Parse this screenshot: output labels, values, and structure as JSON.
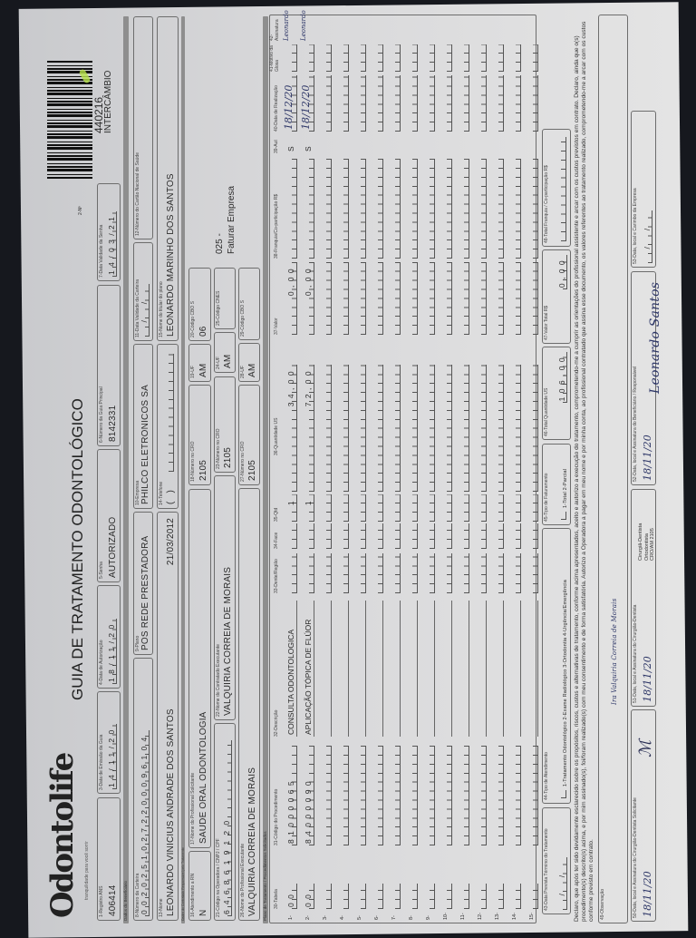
{
  "header": {
    "logo": "Odontolife",
    "tagline": "tranquilidade para você sorrir",
    "title": "GUIA DE TRATAMENTO ODONTOLÓGICO",
    "guide_no_label": "2-Nº",
    "barcode_number": "440216",
    "barcode_label": "INTERCÂMBIO"
  },
  "sections": {
    "beneficiary": "Dados do Beneficiário",
    "contractor": "Dados do Contratado Responsável pelo Tratamento",
    "plan": "Plano de Tratamento / Procedimentos Solicitados"
  },
  "fields": {
    "f1": {
      "label": "1-Registro ANS",
      "value": "406414"
    },
    "f3": {
      "label": "3-Data de Emissão da Guia",
      "value": "14/11/20"
    },
    "f4": {
      "label": "4-Data de Autorização",
      "value": "18/11/20"
    },
    "f5": {
      "label": "5-Senha",
      "value": "AUTORIZADO"
    },
    "f6": {
      "label": "6-Número da Guia Principal",
      "value": "8142331"
    },
    "f7": {
      "label": "7-Data Validade da Senha",
      "value": "14/03/21"
    },
    "f8": {
      "label": "8-Número da Carteira",
      "value": "00202510272200096104"
    },
    "f9": {
      "label": "9-Plano",
      "value": "POS REDE PRESTADORA"
    },
    "f10": {
      "label": "10-Empresa",
      "value": "PHILCO ELETRONICOS SA"
    },
    "f11": {
      "label": "11-Data Validade da Carteira",
      "value": "  /  /  "
    },
    "f12": {
      "label": "12-Número do Cartão Nacional de Saúde",
      "value": ""
    },
    "f13": {
      "label": "13-Nome",
      "value": "LEONARDO VINICIUS ANDRADE DOS SANTOS",
      "date": "21/03/2012"
    },
    "f14": {
      "label": "14-Telefone",
      "value": "(   )"
    },
    "f15": {
      "label": "15-Nome do titular do plano",
      "value": "LEONARDO MARINHO DOS SANTOS"
    },
    "f16": {
      "label": "16-Atendimento a RN",
      "value": "N"
    },
    "f17": {
      "label": "17-Nome do Profissional Solicitante",
      "value": "SAUDE ORAL ODONTOLOGIA"
    },
    "f18": {
      "label": "18-Número no CRO",
      "value": "2105"
    },
    "f19": {
      "label": "19-UF",
      "value": "AM"
    },
    "f20": {
      "label": "20-Código CBO S",
      "value": "06"
    },
    "f21": {
      "label": "21-Código na Operadora / CNPJ / CPF",
      "value": "6468619120"
    },
    "f22": {
      "label": "22-Nome do Contratado Executante",
      "value": "VALQUIRIA CORREIA DE MORAIS"
    },
    "f23": {
      "label": "23-Número no CRO",
      "value": "2105"
    },
    "f24": {
      "label": "24-UF",
      "value": "AM"
    },
    "f25": {
      "label": "25-Código CNES",
      "value": ""
    },
    "f26": {
      "label": "26-Nome do Profissional Executante",
      "value": "VALQUIRIA CORREIA DE MORAIS"
    },
    "f27": {
      "label": "27-Número no CRO",
      "value": "2105"
    },
    "f28": {
      "label": "28-UF",
      "value": "AM"
    },
    "f29": {
      "label": "29-Código CBO S",
      "value": ""
    },
    "billing_note_1": "025 -",
    "billing_note_2": "Faturar Empresa"
  },
  "table": {
    "headers": [
      "30-Tabela",
      "31-Código do Procedimento",
      "32-Descrição",
      "33-Dente/Região",
      "34-Face",
      "35-Qtd",
      "36-Quantidade US",
      "37-Valor",
      "38-Franquia/Co-participação R$",
      "39-Aut",
      "40-Data de Realização",
      "41-Motivo da Glosa",
      "42-Assinatura"
    ],
    "rows": [
      {
        "num": "1-",
        "tabela": "00",
        "codigo": "81000065",
        "descricao": "CONSULTA ODONTOLOGICA",
        "qtd": "1",
        "quant_us": "34,00",
        "valor": "0,00",
        "aut": "S",
        "data": "18/12/20",
        "assinatura": "Leonardo"
      },
      {
        "num": "2-",
        "tabela": "00",
        "codigo": "84000090",
        "descricao": "APLICAÇÃO TÓPICA DE FLÚOR",
        "qtd": "1",
        "quant_us": "72,00",
        "valor": "0,00",
        "aut": "S",
        "data": "18/12/20",
        "assinatura": "Leonardo"
      },
      {
        "num": "3-"
      },
      {
        "num": "4-"
      },
      {
        "num": "5-"
      },
      {
        "num": "6-"
      },
      {
        "num": "7-"
      },
      {
        "num": "8-"
      },
      {
        "num": "9-"
      },
      {
        "num": "10-"
      },
      {
        "num": "11-"
      },
      {
        "num": "12-"
      },
      {
        "num": "13-"
      },
      {
        "num": "14-"
      },
      {
        "num": "15-"
      }
    ]
  },
  "footer": {
    "f43": {
      "label": "43-Data Prevista Término do Tratamento",
      "value": "  /  /  "
    },
    "f44": {
      "label": "44-Tipo de Atendimento",
      "options": "1-Tratamento Odontológico  2-Exame Radiológico  3-Ortodontia  4-Urgência/Emergência"
    },
    "f45": {
      "label": "45-Tipo de Faturamento",
      "options": "1-Total  2-Parcial"
    },
    "f46": {
      "label": "46-Total Quantidade US",
      "value": "106,00"
    },
    "f47": {
      "label": "47-Valor Total R$",
      "value": "0,00"
    },
    "f48": {
      "label": "48-Total Franquia / Co-participação R$",
      "value": ""
    },
    "declaration": "Declaro, que após ter sido devidamente esclarecido sobre os propósitos, riscos, custos e alternativas de tratamento, conforme acima apresentados, aceito e autorizo a execução do tratamento, comprometendo-me a cumprir as orientações do profissional assistente e arcar com os custos previstos em contrato. Declaro, ainda que o(s) procedimento(s) descrito(s) acima, e por mim assinado(s), foi/foram realizado(s) com meu consentimento e de forma satisfatória. Autorizo a Operadora a pagar em meu nome e por minha conta, ao profissional contratado que assina esse documento, os valores referentes ao tratamento realizado, comprometendo-me a arcar com os custos conforme previsto em contrato.",
    "f49": {
      "label": "49-Observação",
      "handwritten": "Ira Valquiria Correia de Morais"
    },
    "f50": {
      "label": "50-Data, local e Assinatura do Cirurgião-Dentista Solicitante",
      "value": "18/11/20"
    },
    "f51": {
      "label": "51-Data, local e Assinatura do Cirurgião-Dentista",
      "value": "18/11/20",
      "stamp_1": "Cirurgiã-Dentista",
      "stamp_2": "Ortodontista",
      "stamp_3": "CRO/AM 2105"
    },
    "f52": {
      "label": "52-Data, local e Assinatura do Beneficiário / Responsável",
      "value": "18/11/20",
      "signature": "Leonardo Santos"
    },
    "f53": {
      "label": "53-Data, local e Carimbo da Empresa",
      "value": "  /  /  "
    }
  }
}
